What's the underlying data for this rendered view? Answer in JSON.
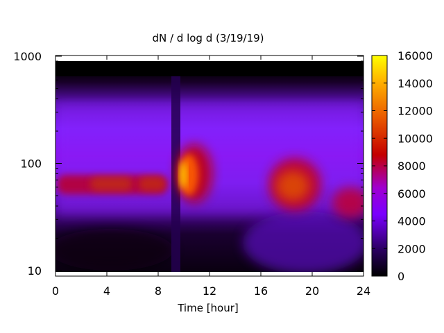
{
  "chart_data": {
    "type": "heatmap",
    "title": "dN / d log d (3/19/19)",
    "xlabel": "Time [hour]",
    "ylabel": "",
    "xlim": [
      0,
      24
    ],
    "ylim": [
      9,
      1000
    ],
    "y_scale": "log",
    "x_ticks": [
      "0",
      "4",
      "8",
      "12",
      "16",
      "20",
      "24"
    ],
    "y_ticks": [
      "10",
      "100",
      "1000"
    ],
    "colorbar": {
      "range": [
        0,
        16000
      ],
      "ticks": [
        "0",
        "2000",
        "4000",
        "6000",
        "8000",
        "10000",
        "12000",
        "14000",
        "16000"
      ],
      "palette": [
        "#000000",
        "#7a00ff",
        "#c40000",
        "#ff9a00",
        "#ffff00"
      ]
    },
    "features": [
      {
        "time_range": [
          0,
          9
        ],
        "diameter_center": 62,
        "value": 8000
      },
      {
        "time_range": [
          9.8,
          12
        ],
        "diameter_center": 80,
        "value": 15000
      },
      {
        "time_range": [
          16,
          21
        ],
        "diameter_center": 60,
        "value": 9500
      },
      {
        "time_range": [
          21,
          24
        ],
        "diameter_center": 42,
        "value": 8500
      }
    ]
  }
}
